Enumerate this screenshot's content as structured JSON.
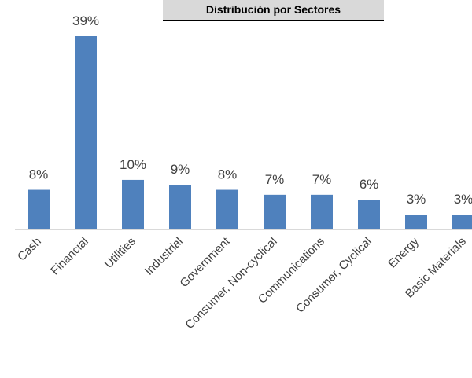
{
  "chart_data": {
    "type": "bar",
    "title": "Distribución por Sectores",
    "categories": [
      "Cash",
      "Financial",
      "Utilities",
      "Industrial",
      "Government",
      "Consumer, Non-cyclical",
      "Communications",
      "Consumer, Cyclical",
      "Energy",
      "Basic Materials"
    ],
    "values": [
      8,
      39,
      10,
      9,
      8,
      7,
      7,
      6,
      3,
      3
    ],
    "data_labels": [
      "8%",
      "39%",
      "10%",
      "9%",
      "8%",
      "7%",
      "7%",
      "6%",
      "3%",
      "3%"
    ],
    "ylim": [
      0,
      39
    ],
    "grid": false,
    "legend": "none",
    "bar_color": "#4f81bd",
    "axis_color": "#d9d9d9",
    "label_color": "#404040"
  }
}
